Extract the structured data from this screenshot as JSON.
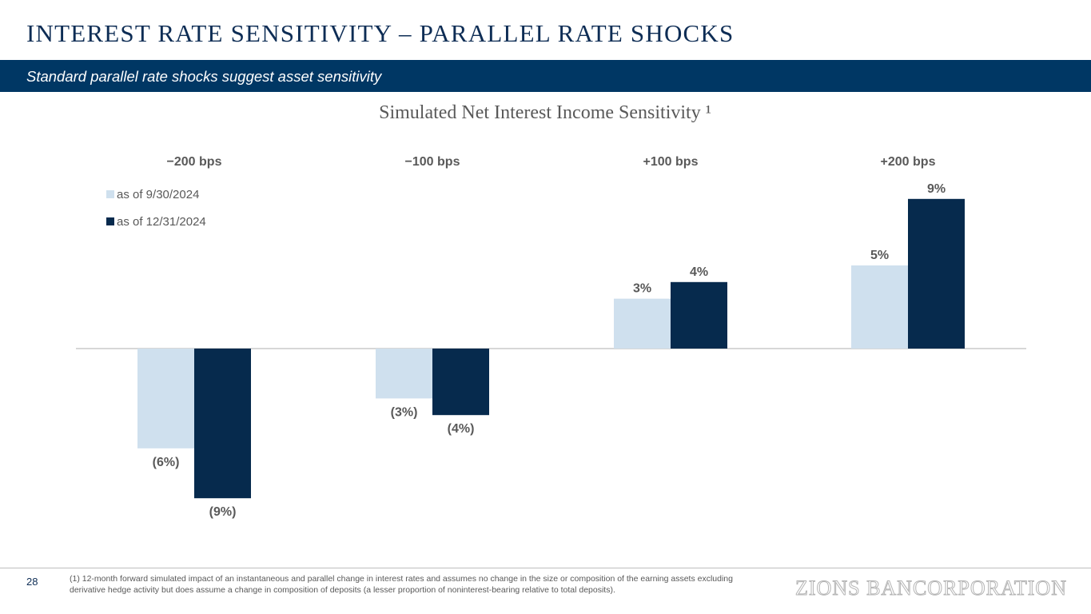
{
  "header": {
    "title": "INTEREST RATE SENSITIVITY – PARALLEL RATE SHOCKS",
    "subtitle": "Standard parallel rate shocks suggest asset sensitivity"
  },
  "colors": {
    "navy": "#003764",
    "title_text": "#0e2d55",
    "series_light": "#cfe0ee",
    "series_dark": "#062a4d",
    "label_text": "#595959"
  },
  "chart_data": {
    "type": "bar",
    "title": "Simulated Net Interest Income Sensitivity ¹",
    "categories": [
      "−200 bps",
      "−100 bps",
      "+100 bps",
      "+200 bps"
    ],
    "series": [
      {
        "name": "as of 9/30/2024",
        "values": [
          -6,
          -3,
          3,
          5
        ],
        "labels": [
          "(6%)",
          "(3%)",
          "3%",
          "5%"
        ]
      },
      {
        "name": "as of 12/31/2024",
        "values": [
          -9,
          -4,
          4,
          9
        ],
        "labels": [
          "(9%)",
          "(4%)",
          "4%",
          "9%"
        ]
      }
    ],
    "value_unit": "%",
    "category_labels_position": "top",
    "legend_position": "top-left",
    "grid": false
  },
  "footer": {
    "page_number": "28",
    "footnote": "(1) 12-month forward simulated impact of an instantaneous and parallel change in interest rates and assumes no change in the size or composition of the earning assets excluding derivative hedge activity but does assume a change in composition of deposits (a lesser proportion of noninterest-bearing relative to total deposits).",
    "logo_text": "ZIONS BANCORPORATION"
  }
}
